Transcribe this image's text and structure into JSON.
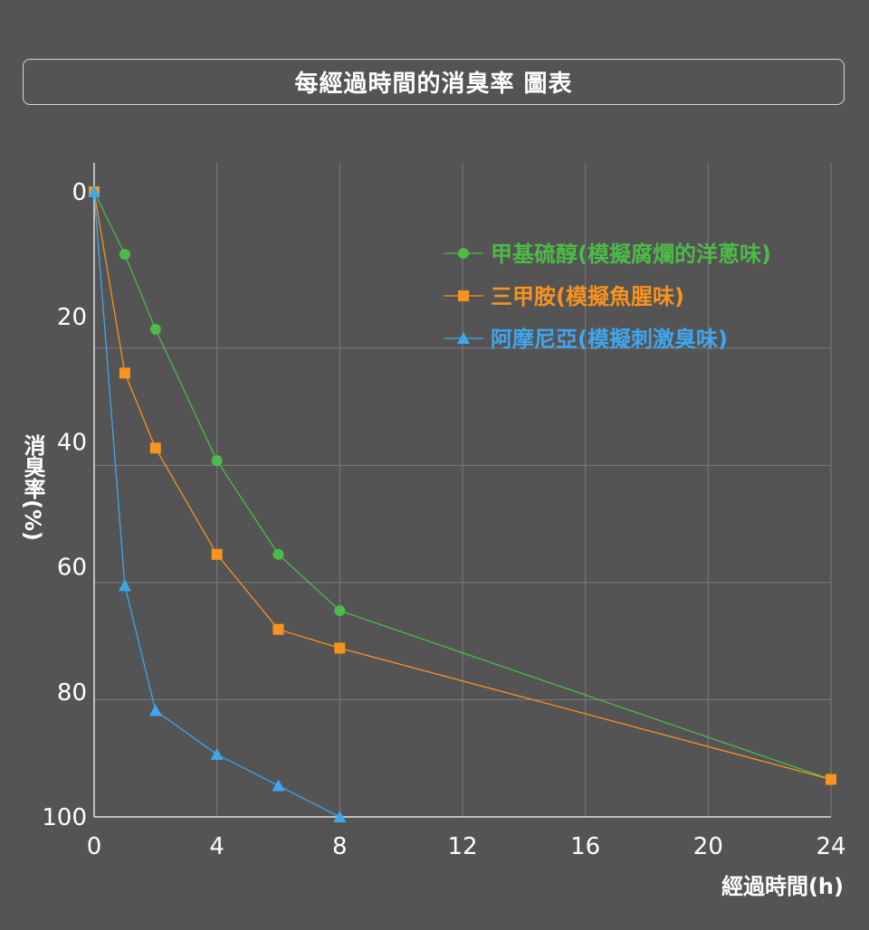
{
  "chart_data": {
    "type": "line",
    "title": "每經過時間的消臭率 圖表",
    "xlabel": "經過時間(h)",
    "ylabel": "消臭率(%)",
    "xlim": [
      0,
      24
    ],
    "ylim": [
      0,
      100
    ],
    "y_inverted": true,
    "x_ticks": [
      0,
      4,
      8,
      12,
      16,
      20,
      24
    ],
    "y_ticks": [
      0,
      20,
      40,
      60,
      80,
      100
    ],
    "grid": true,
    "legend_position": "top-right",
    "series": [
      {
        "name": "甲基硫醇(模擬腐爛的洋蔥味)",
        "color": "#4cbb47",
        "marker": "circle",
        "x": [
          0,
          1,
          2,
          4,
          6,
          8,
          24
        ],
        "values": [
          0,
          10,
          22,
          43,
          58,
          67,
          94
        ]
      },
      {
        "name": "三甲胺(模擬魚腥味)",
        "color": "#f7931e",
        "marker": "square",
        "x": [
          0,
          1,
          2,
          4,
          6,
          8,
          24
        ],
        "values": [
          0,
          29,
          41,
          58,
          70,
          73,
          94
        ]
      },
      {
        "name": "阿摩尼亞(模擬刺激臭味)",
        "color": "#3fa6ee",
        "marker": "triangle",
        "x": [
          0,
          1,
          2,
          4,
          6,
          8
        ],
        "values": [
          0,
          63,
          83,
          90,
          95,
          100
        ]
      }
    ]
  }
}
